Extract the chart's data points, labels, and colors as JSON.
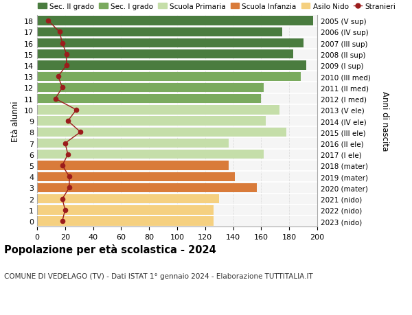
{
  "ages": [
    18,
    17,
    16,
    15,
    14,
    13,
    12,
    11,
    10,
    9,
    8,
    7,
    6,
    5,
    4,
    3,
    2,
    1,
    0
  ],
  "right_labels": [
    "2005 (V sup)",
    "2006 (IV sup)",
    "2007 (III sup)",
    "2008 (II sup)",
    "2009 (I sup)",
    "2010 (III med)",
    "2011 (II med)",
    "2012 (I med)",
    "2013 (V ele)",
    "2014 (IV ele)",
    "2015 (III ele)",
    "2016 (II ele)",
    "2017 (I ele)",
    "2018 (mater)",
    "2019 (mater)",
    "2020 (mater)",
    "2021 (nido)",
    "2022 (nido)",
    "2023 (nido)"
  ],
  "bar_values": [
    197,
    175,
    190,
    183,
    192,
    188,
    162,
    160,
    173,
    163,
    178,
    137,
    162,
    137,
    141,
    157,
    130,
    126,
    126
  ],
  "bar_colors": [
    "#4a7c3f",
    "#4a7c3f",
    "#4a7c3f",
    "#4a7c3f",
    "#4a7c3f",
    "#7aaa5e",
    "#7aaa5e",
    "#7aaa5e",
    "#c5dea9",
    "#c5dea9",
    "#c5dea9",
    "#c5dea9",
    "#c5dea9",
    "#d97b3a",
    "#d97b3a",
    "#d97b3a",
    "#f5d080",
    "#f5d080",
    "#f5d080"
  ],
  "stranieri_values": [
    8,
    16,
    18,
    21,
    21,
    15,
    18,
    13,
    28,
    22,
    31,
    20,
    22,
    18,
    23,
    23,
    18,
    20,
    18
  ],
  "stranieri_color": "#9b1c1c",
  "title": "Popolazione per età scolastica - 2024",
  "subtitle": "COMUNE DI VEDELAGO (TV) - Dati ISTAT 1° gennaio 2024 - Elaborazione TUTTITALIA.IT",
  "ylabel_left": "Età alunni",
  "ylabel_right": "Anni di nascita",
  "xlim": [
    0,
    200
  ],
  "xticks": [
    0,
    20,
    40,
    60,
    80,
    100,
    120,
    140,
    160,
    180,
    200
  ],
  "legend_labels": [
    "Sec. II grado",
    "Sec. I grado",
    "Scuola Primaria",
    "Scuola Infanzia",
    "Asilo Nido",
    "Stranieri"
  ],
  "legend_colors": [
    "#4a7c3f",
    "#7aaa5e",
    "#c5dea9",
    "#d97b3a",
    "#f5d080",
    "#9b1c1c"
  ],
  "bg_color": "#ffffff",
  "plot_bg_color": "#f5f5f5",
  "grid_color": "#dddddd",
  "bar_height": 0.82
}
